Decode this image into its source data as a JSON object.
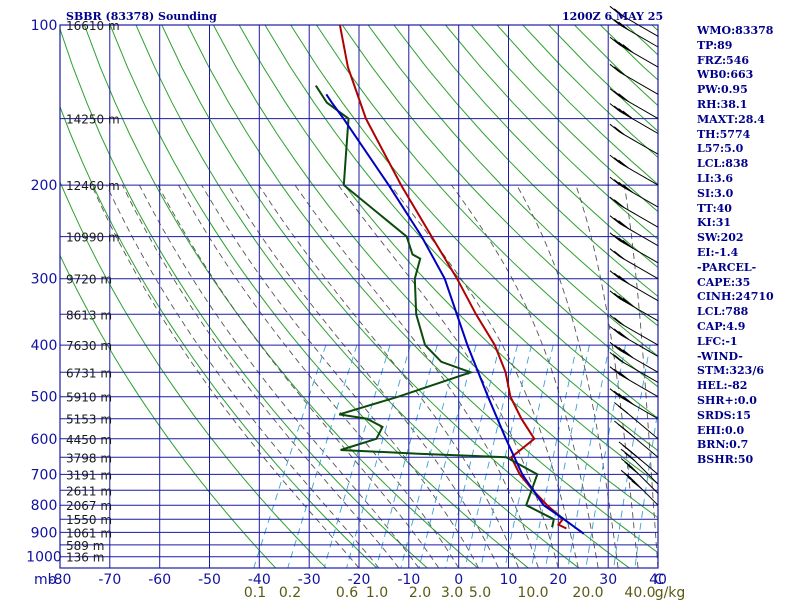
{
  "header": {
    "station": "SBBR (83378) Sounding",
    "time": "1200Z  6 MAY 25"
  },
  "indices": [
    "WMO:83378",
    "TP:89",
    "FRZ:546",
    "WB0:663",
    "PW:0.95",
    "RH:38.1",
    "MAXT:28.4",
    "TH:5774",
    "L57:5.0",
    "LCL:838",
    "LI:3.6",
    "SI:3.0",
    "TT:40",
    "KI:31",
    "SW:202",
    "EI:-1.4",
    "-PARCEL-",
    "CAPE:35",
    "CINH:24710",
    "LCL:788",
    "CAP:4.9",
    "LFC:-1",
    "-WIND-",
    "STM:323/6",
    "HEL:-82",
    "SHR+:0.0",
    "SRDS:15",
    "EHI:0.0",
    "BRN:0.7",
    "BSHR:50"
  ],
  "colors": {
    "grid": "#1a1aa6",
    "dry_adiabat": "#2ea02e",
    "moist_adiabat": "#555555",
    "mixing_ratio": "#3aa0d8",
    "temperature": "#b00000",
    "dewpoint": "#0a4a0a",
    "parcel": "#0000c0"
  },
  "chart_data": {
    "type": "line",
    "title": "SBBR (83378) Sounding",
    "subtitle": "1200Z  6 MAY 25",
    "x_axis": {
      "label": "C",
      "range": [
        -80,
        40
      ],
      "ticks": [
        -80,
        -70,
        -60,
        -50,
        -40,
        -30,
        -20,
        -10,
        0,
        10,
        20,
        30,
        40
      ]
    },
    "y_axis": {
      "label": "mb",
      "scale": "log",
      "range": [
        1000,
        100
      ],
      "ticks": [
        100,
        200,
        300,
        400,
        500,
        600,
        700,
        800,
        900,
        1000
      ]
    },
    "height_labels": [
      {
        "p": 100,
        "label": "16610 m"
      },
      {
        "p": 150,
        "label": "14250 m"
      },
      {
        "p": 200,
        "label": "12460 m"
      },
      {
        "p": 250,
        "label": "10990 m"
      },
      {
        "p": 300,
        "label": "9720 m"
      },
      {
        "p": 350,
        "label": "8613 m"
      },
      {
        "p": 400,
        "label": "7630 m"
      },
      {
        "p": 450,
        "label": "6731 m"
      },
      {
        "p": 500,
        "label": "5910 m"
      },
      {
        "p": 550,
        "label": "5153 m"
      },
      {
        "p": 600,
        "label": "4450 m"
      },
      {
        "p": 650,
        "label": "3798 m"
      },
      {
        "p": 700,
        "label": "3191 m"
      },
      {
        "p": 750,
        "label": "2611 m"
      },
      {
        "p": 800,
        "label": "2067 m"
      },
      {
        "p": 850,
        "label": "1550 m"
      },
      {
        "p": 900,
        "label": "1061 m"
      },
      {
        "p": 950,
        "label": "589 m"
      },
      {
        "p": 1000,
        "label": "136 m"
      }
    ],
    "mixing_ratio_labels": [
      "0.1",
      "0.2",
      "0.6",
      "1.0",
      "2.0",
      "3.0",
      "5.0",
      "10.0",
      "20.0",
      "40.0",
      "g/kg"
    ],
    "series": [
      {
        "name": "Temperature",
        "points": [
          [
            885,
            17.5
          ],
          [
            870,
            15.5
          ],
          [
            850,
            15.8
          ],
          [
            800,
            11.2
          ],
          [
            750,
            6.8
          ],
          [
            700,
            2.5
          ],
          [
            650,
            -1.0
          ],
          [
            600,
            1.7
          ],
          [
            550,
            -3.0
          ],
          [
            500,
            -7.5
          ],
          [
            450,
            -11.0
          ],
          [
            400,
            -16.0
          ],
          [
            350,
            -23.0
          ],
          [
            300,
            -30.5
          ],
          [
            250,
            -40.0
          ],
          [
            200,
            -51.5
          ],
          [
            150,
            -65.5
          ],
          [
            120,
            -74.5
          ],
          [
            100,
            -80.5
          ]
        ]
      },
      {
        "name": "Dewpoint",
        "points": [
          [
            880,
            14.5
          ],
          [
            850,
            14.0
          ],
          [
            800,
            7.0
          ],
          [
            700,
            6.0
          ],
          [
            650,
            -2.0
          ],
          [
            640,
            -20.0
          ],
          [
            630,
            -36.0
          ],
          [
            600,
            -30.0
          ],
          [
            570,
            -30.0
          ],
          [
            550,
            -34.0
          ],
          [
            540,
            -40.0
          ],
          [
            500,
            -30.0
          ],
          [
            450,
            -18.0
          ],
          [
            430,
            -25.0
          ],
          [
            400,
            -30.0
          ],
          [
            350,
            -35.0
          ],
          [
            300,
            -39.0
          ],
          [
            275,
            -40.0
          ],
          [
            270,
            -42.0
          ],
          [
            250,
            -45.0
          ],
          [
            200,
            -63.0
          ],
          [
            150,
            -69.0
          ],
          [
            140,
            -75.0
          ],
          [
            130,
            -79.0
          ]
        ]
      },
      {
        "name": "Parcel",
        "points": [
          [
            905,
            21.5
          ],
          [
            850,
            16.0
          ],
          [
            800,
            10.5
          ],
          [
            700,
            3.0
          ],
          [
            600,
            -4.0
          ],
          [
            500,
            -12.0
          ],
          [
            400,
            -21.5
          ],
          [
            300,
            -33.0
          ],
          [
            250,
            -42.0
          ],
          [
            200,
            -54.0
          ],
          [
            150,
            -70.0
          ],
          [
            140,
            -74.0
          ],
          [
            135,
            -76.0
          ]
        ]
      }
    ]
  }
}
